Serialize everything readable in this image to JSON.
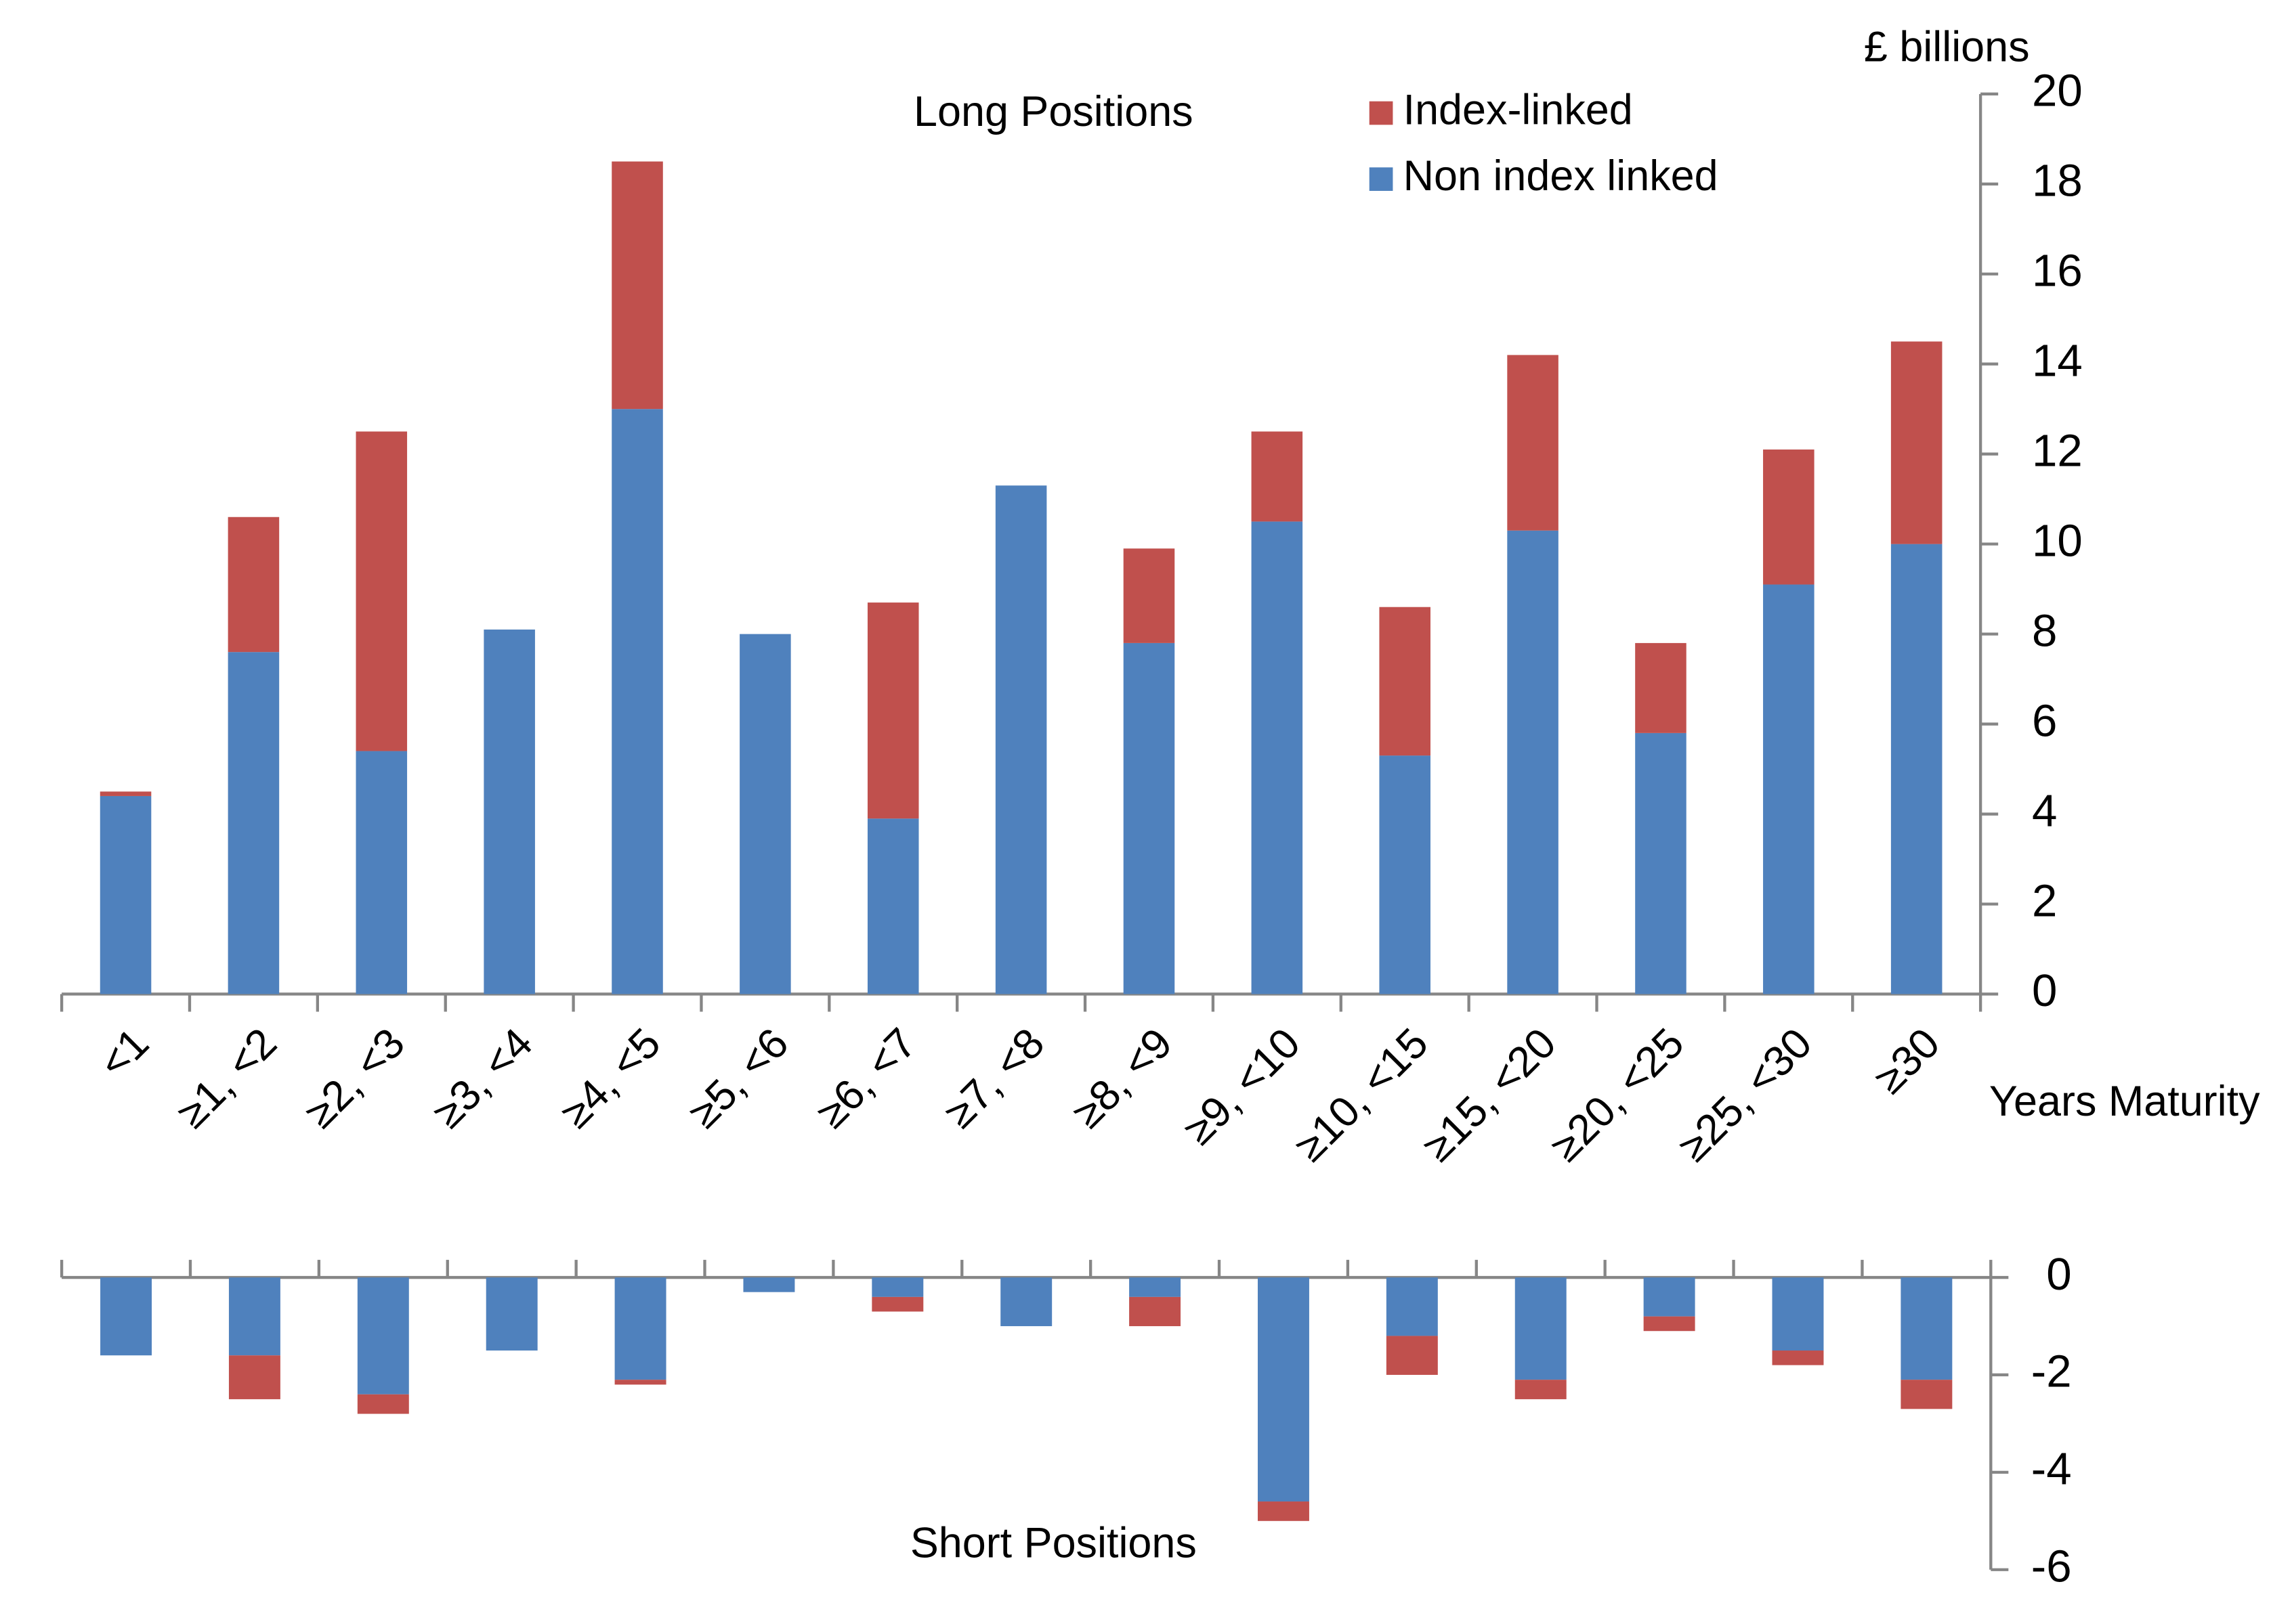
{
  "chart_data": [
    {
      "type": "bar",
      "stacked": true,
      "title": "Long Positions",
      "y_label": "£ billions",
      "x_label": "Years Maturity",
      "categories": [
        "<1",
        "≥1, <2",
        "≥2, <3",
        "≥3, <4",
        "≥4, <5",
        "≥5, <6",
        "≥6, <7",
        "≥7, <8",
        "≥8, <9",
        "≥9, <10",
        "≥10, <15",
        "≥15, <20",
        "≥20, <25",
        "≥25, <30",
        "≥30"
      ],
      "series": [
        {
          "name": "Non index linked",
          "color": "#4f81bd",
          "values": [
            4.4,
            7.6,
            5.4,
            8.1,
            13.0,
            8.0,
            3.9,
            11.3,
            7.8,
            10.5,
            5.3,
            10.3,
            5.8,
            9.1,
            10.0
          ]
        },
        {
          "name": "Index-linked",
          "color": "#c0504d",
          "values": [
            0.1,
            3.0,
            7.1,
            0,
            5.5,
            0,
            4.8,
            0,
            2.1,
            2.0,
            3.3,
            3.9,
            2.0,
            3.0,
            4.5
          ]
        }
      ],
      "ylim": [
        0,
        20
      ],
      "yticks": [
        0,
        2,
        4,
        6,
        8,
        10,
        12,
        14,
        16,
        18,
        20
      ],
      "y_axis_side": "right",
      "legend": "top-right"
    },
    {
      "type": "bar",
      "stacked": true,
      "title": "Short Positions",
      "series": [
        {
          "color": "#4f81bd",
          "values": [
            -1.6,
            -1.6,
            -2.4,
            -1.5,
            -2.1,
            -0.3,
            -0.4,
            -1.0,
            -0.4,
            -4.6,
            -1.2,
            -2.1,
            -0.8,
            -1.5,
            -2.1
          ]
        },
        {
          "color": "#c0504d",
          "values": [
            0,
            -0.9,
            -0.4,
            0,
            -0.1,
            0,
            -0.3,
            0,
            -0.6,
            -0.4,
            -0.8,
            -0.4,
            -0.3,
            -0.3,
            -0.6
          ]
        }
      ],
      "ylim": [
        -6,
        0
      ],
      "yticks": [
        -6,
        -4,
        -2,
        0
      ],
      "y_axis_side": "right"
    }
  ]
}
